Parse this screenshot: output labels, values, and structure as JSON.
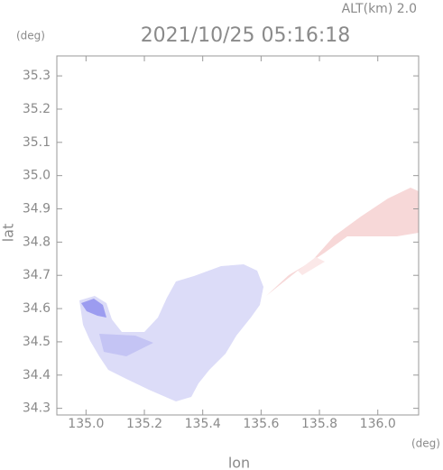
{
  "chart_data": {
    "type": "map",
    "title": "2021/10/25 05:16:18",
    "annotation": "ALT(km) 2.0",
    "x_label": "lon",
    "y_label": "lat",
    "x_unit": "(deg)",
    "y_unit": "(deg)",
    "xlim": [
      134.9,
      136.14
    ],
    "ylim": [
      34.28,
      35.36
    ],
    "xticks": [
      {
        "value": 135,
        "label": "135.0"
      },
      135.2,
      135.4,
      135.6,
      135.8,
      {
        "value": 136,
        "label": "136.0"
      }
    ],
    "yticks": [
      34.3,
      34.4,
      34.5,
      34.6,
      34.7,
      34.8,
      34.9,
      {
        "value": 35,
        "label": "35.0"
      },
      35.1,
      35.2,
      35.3
    ]
  }
}
